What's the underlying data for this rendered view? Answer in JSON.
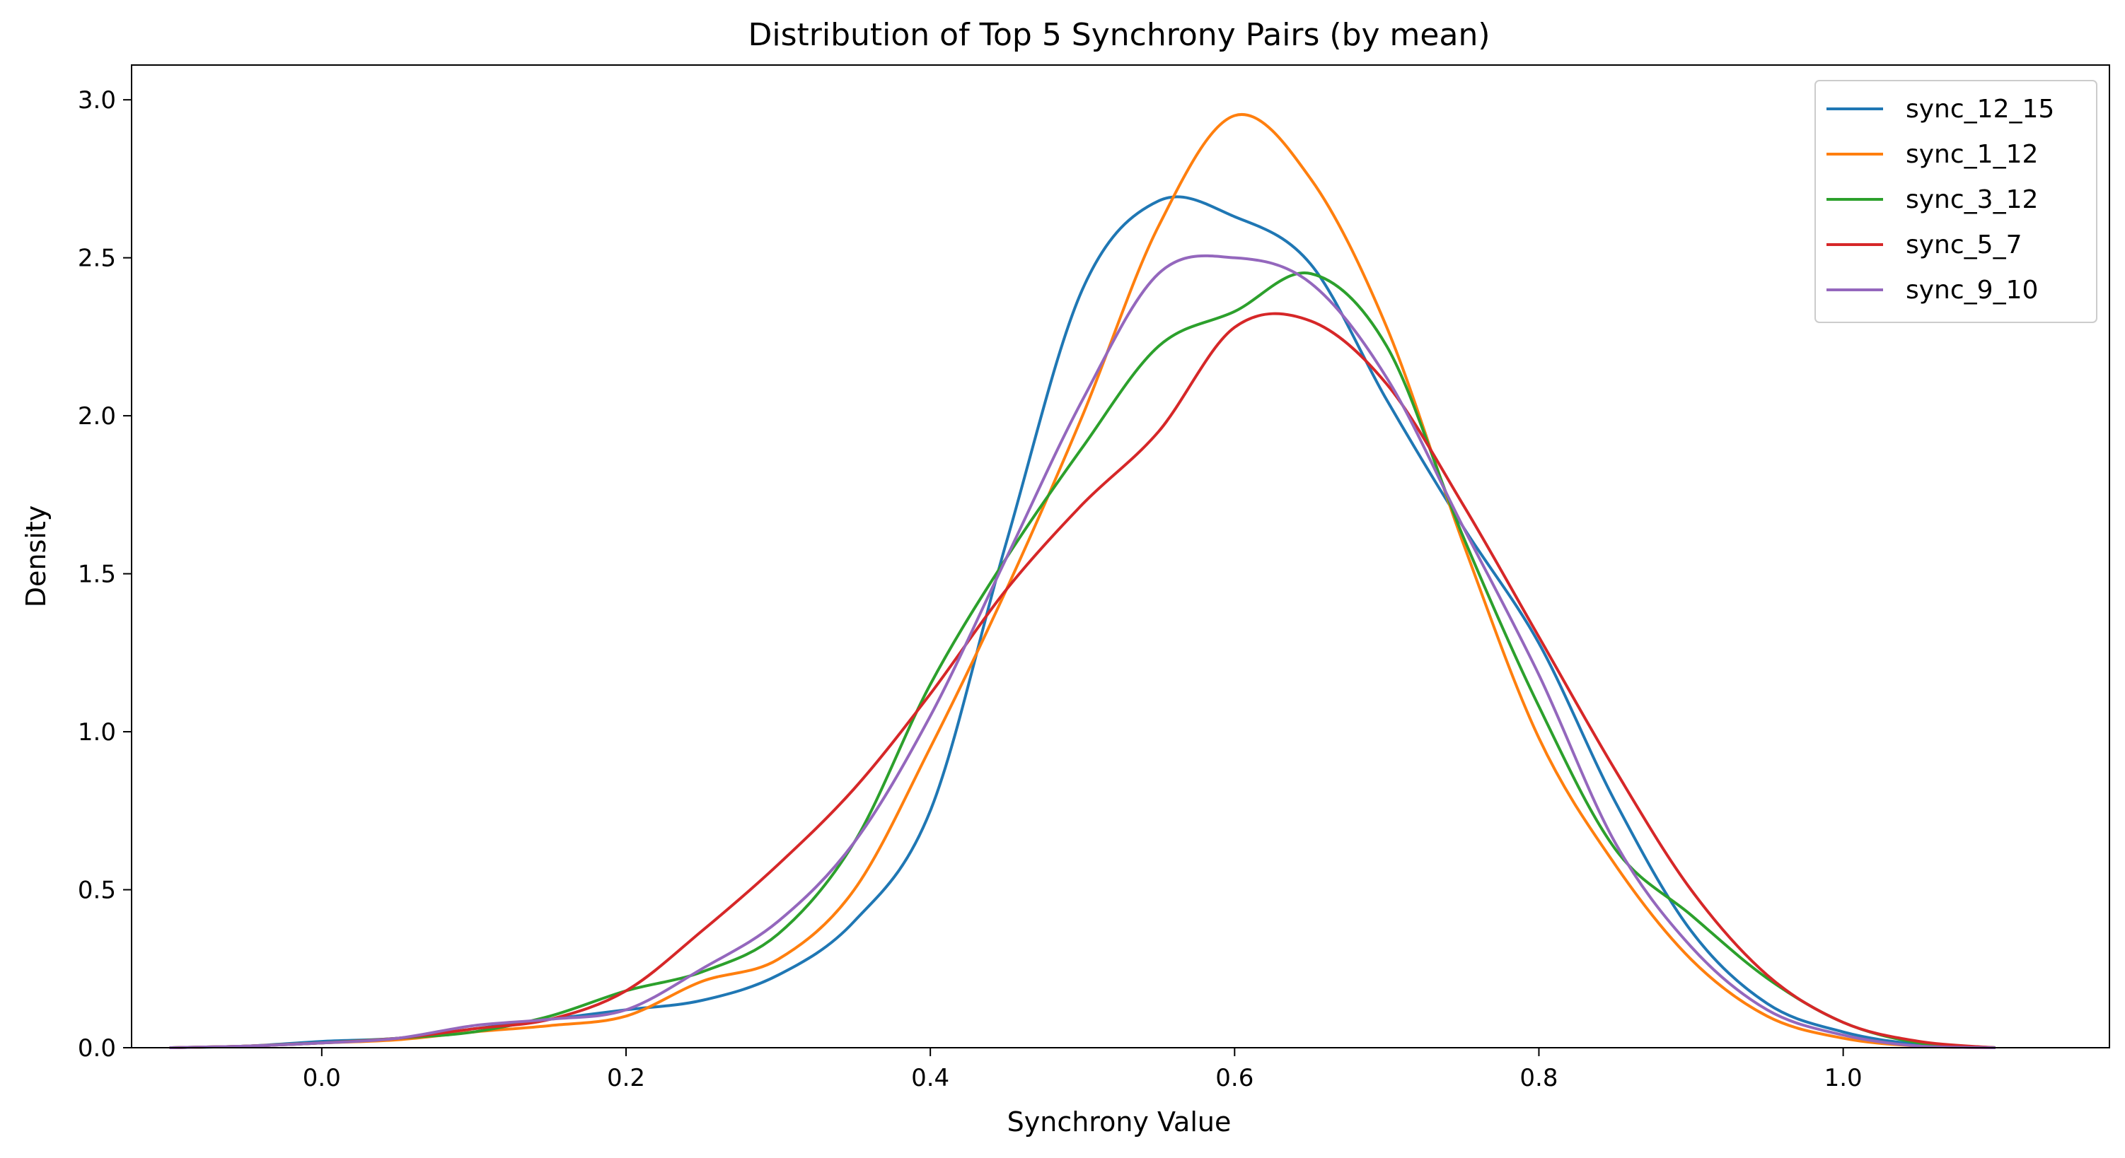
{
  "chart_data": {
    "type": "line",
    "title": "Distribution of Top 5 Synchrony Pairs (by mean)",
    "xlabel": "Synchrony Value",
    "ylabel": "Density",
    "xlim": [
      -0.125,
      1.175
    ],
    "ylim": [
      0,
      3.11
    ],
    "xticks": [
      0.0,
      0.2,
      0.4,
      0.6,
      0.8,
      1.0
    ],
    "xtick_labels": [
      "0.0",
      "0.2",
      "0.4",
      "0.6",
      "0.8",
      "1.0"
    ],
    "yticks": [
      0.0,
      0.5,
      1.0,
      1.5,
      2.0,
      2.5,
      3.0
    ],
    "ytick_labels": [
      "0.0",
      "0.5",
      "1.0",
      "1.5",
      "2.0",
      "2.5",
      "3.0"
    ],
    "grid": false,
    "legend": "top-right",
    "series": [
      {
        "name": "sync_12_15",
        "color": "#1f77b4",
        "x": [
          -0.1,
          -0.05,
          0.0,
          0.05,
          0.1,
          0.15,
          0.2,
          0.25,
          0.3,
          0.35,
          0.4,
          0.45,
          0.5,
          0.55,
          0.6,
          0.65,
          0.7,
          0.75,
          0.8,
          0.85,
          0.9,
          0.95,
          1.0,
          1.05,
          1.1
        ],
        "y": [
          0.0,
          0.005,
          0.02,
          0.03,
          0.06,
          0.09,
          0.12,
          0.15,
          0.23,
          0.4,
          0.75,
          1.6,
          2.4,
          2.68,
          2.63,
          2.48,
          2.05,
          1.65,
          1.28,
          0.78,
          0.37,
          0.14,
          0.05,
          0.01,
          0.0
        ]
      },
      {
        "name": "sync_1_12",
        "color": "#ff7f0e",
        "x": [
          -0.1,
          -0.05,
          0.0,
          0.05,
          0.1,
          0.15,
          0.2,
          0.25,
          0.3,
          0.35,
          0.4,
          0.45,
          0.5,
          0.55,
          0.6,
          0.65,
          0.7,
          0.75,
          0.8,
          0.85,
          0.9,
          0.95,
          1.0,
          1.05,
          1.1
        ],
        "y": [
          0.0,
          0.005,
          0.015,
          0.025,
          0.05,
          0.07,
          0.1,
          0.21,
          0.28,
          0.5,
          0.95,
          1.45,
          2.0,
          2.6,
          2.95,
          2.75,
          2.28,
          1.6,
          0.98,
          0.58,
          0.28,
          0.1,
          0.03,
          0.005,
          0.0
        ]
      },
      {
        "name": "sync_3_12",
        "color": "#2ca02c",
        "x": [
          -0.1,
          -0.05,
          0.0,
          0.05,
          0.1,
          0.15,
          0.2,
          0.25,
          0.3,
          0.35,
          0.4,
          0.45,
          0.5,
          0.55,
          0.6,
          0.65,
          0.7,
          0.75,
          0.8,
          0.85,
          0.9,
          0.95,
          1.0,
          1.05,
          1.1
        ],
        "y": [
          0.0,
          0.005,
          0.015,
          0.03,
          0.05,
          0.1,
          0.18,
          0.24,
          0.36,
          0.65,
          1.15,
          1.55,
          1.9,
          2.22,
          2.33,
          2.45,
          2.22,
          1.62,
          1.08,
          0.63,
          0.42,
          0.22,
          0.08,
          0.015,
          0.0
        ]
      },
      {
        "name": "sync_5_7",
        "color": "#d62728",
        "x": [
          -0.1,
          -0.05,
          0.0,
          0.05,
          0.1,
          0.15,
          0.2,
          0.25,
          0.3,
          0.35,
          0.4,
          0.45,
          0.5,
          0.55,
          0.6,
          0.65,
          0.7,
          0.75,
          0.8,
          0.85,
          0.9,
          0.95,
          1.0,
          1.05,
          1.1
        ],
        "y": [
          0.0,
          0.005,
          0.015,
          0.03,
          0.06,
          0.09,
          0.18,
          0.37,
          0.58,
          0.82,
          1.12,
          1.45,
          1.72,
          1.95,
          2.28,
          2.3,
          2.1,
          1.72,
          1.3,
          0.88,
          0.5,
          0.23,
          0.08,
          0.02,
          0.0
        ]
      },
      {
        "name": "sync_9_10",
        "color": "#9467bd",
        "x": [
          -0.1,
          -0.05,
          0.0,
          0.05,
          0.1,
          0.15,
          0.2,
          0.25,
          0.3,
          0.35,
          0.4,
          0.45,
          0.5,
          0.55,
          0.6,
          0.65,
          0.7,
          0.75,
          0.8,
          0.85,
          0.9,
          0.95,
          1.0,
          1.05,
          1.1
        ],
        "y": [
          0.0,
          0.005,
          0.015,
          0.03,
          0.07,
          0.09,
          0.12,
          0.25,
          0.4,
          0.65,
          1.05,
          1.55,
          2.05,
          2.45,
          2.5,
          2.42,
          2.12,
          1.65,
          1.18,
          0.65,
          0.32,
          0.12,
          0.04,
          0.005,
          0.0
        ]
      }
    ]
  }
}
